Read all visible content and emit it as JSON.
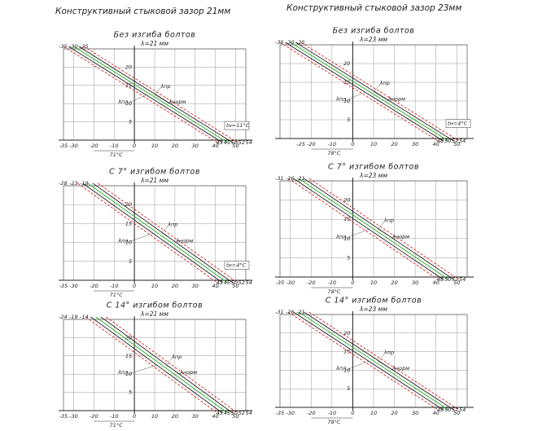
{
  "headers": [
    "Конструктивный стыковой зазор 21мм",
    "Конструктивный стыковой зазор 23мм"
  ],
  "panels": [
    {
      "title": "Без изгиба болтов",
      "lambda": "λ=21 мм",
      "top_ticks": [
        -35,
        -30,
        -25
      ],
      "yticks": [
        20,
        15,
        10,
        5
      ],
      "xticks": [
        -35,
        -30,
        -20,
        -10,
        0,
        10,
        20,
        30,
        40,
        50
      ],
      "end_ticks": [
        43,
        45,
        50,
        52,
        54
      ],
      "labels": [
        "λпр",
        "λнорм",
        "λпл"
      ],
      "temp": "tн=11°C",
      "bottom": "71°C"
    },
    {
      "title": "С 7° изгибом болтов",
      "lambda": "λ=21 мм",
      "top_ticks": [
        -28,
        -23,
        -18
      ],
      "yticks": [
        20,
        15,
        10,
        5
      ],
      "xticks": [
        -35,
        -30,
        -20,
        -10,
        0,
        10,
        20,
        30,
        40,
        50
      ],
      "end_ticks": [
        43,
        45,
        50,
        52,
        54
      ],
      "labels": [
        "λпр",
        "λнорм",
        "λпл"
      ],
      "temp": "tн=4°C",
      "bottom": "71°C"
    },
    {
      "title": "С 14° изгибом болтов",
      "lambda": "λ=21 мм",
      "top_ticks": [
        -24,
        -19,
        -14
      ],
      "yticks": [
        20,
        15,
        10,
        5
      ],
      "xticks": [
        -35,
        -30,
        -20,
        -10,
        0,
        10,
        20,
        30,
        40,
        50
      ],
      "end_ticks": [
        43,
        45,
        50,
        52,
        54
      ],
      "labels": [
        "λпр",
        "λнорм",
        "λпл"
      ],
      "bottom": "71°C"
    },
    {
      "title": "Без изгиба болтов",
      "lambda": "λ=23 мм",
      "top_ticks": [
        -35,
        -30,
        -25
      ],
      "yticks": [
        20,
        15,
        10,
        5
      ],
      "xticks": [
        -25,
        -20,
        -10,
        0,
        10,
        20,
        30,
        40,
        50
      ],
      "end_ticks": [
        48,
        50,
        52,
        54
      ],
      "labels": [
        "λпр",
        "λнорм",
        "λпл"
      ],
      "temp": "tн=4°C",
      "bottom": "78°C"
    },
    {
      "title": "С 7° изгибом болтов",
      "lambda": "λ=23 мм",
      "top_ticks": [
        -31,
        -26,
        -21
      ],
      "yticks": [
        20,
        15,
        10,
        5
      ],
      "xticks": [
        -35,
        -30,
        -20,
        -10,
        0,
        10,
        20,
        30,
        40,
        50
      ],
      "end_ticks": [
        48,
        50,
        52,
        54
      ],
      "labels": [
        "λпр",
        "λнорм",
        "λпл"
      ],
      "bottom": "78°C"
    },
    {
      "title": "С 14° изгибом болтов",
      "lambda": "λ=23 мм",
      "top_ticks": [
        -31,
        -26,
        -21
      ],
      "yticks": [
        20,
        15,
        10,
        5
      ],
      "xticks": [
        -35,
        -30,
        -20,
        -10,
        0,
        10,
        20,
        30,
        40,
        50
      ],
      "end_ticks": [
        48,
        50,
        52,
        54
      ],
      "labels": [
        "λпр",
        "λнорм",
        "λпл"
      ],
      "bottom": "78°C"
    }
  ]
}
